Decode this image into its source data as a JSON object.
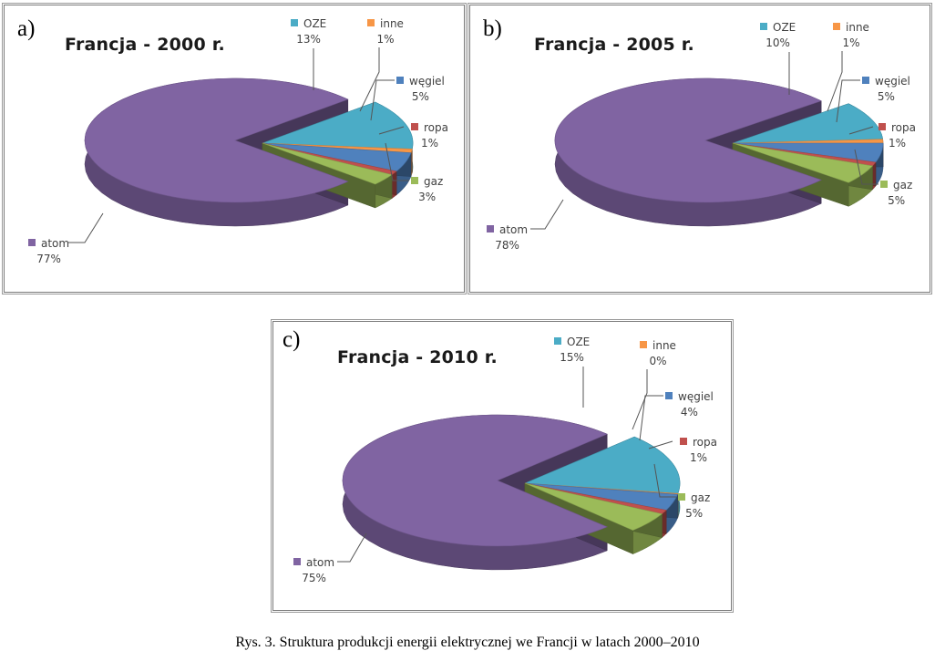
{
  "chart_data": [
    {
      "type": "pie",
      "panel_label": "a)",
      "title": "Francja - 2000 r.",
      "slices": [
        {
          "name": "atom",
          "value": 77,
          "label": "77%"
        },
        {
          "name": "OZE",
          "value": 13,
          "label": "13%"
        },
        {
          "name": "inne",
          "value": 1,
          "label": "1%"
        },
        {
          "name": "węgiel",
          "value": 5,
          "label": "5%"
        },
        {
          "name": "ropa",
          "value": 1,
          "label": "1%"
        },
        {
          "name": "gaz",
          "value": 3,
          "label": "3%"
        }
      ]
    },
    {
      "type": "pie",
      "panel_label": "b)",
      "title": "Francja - 2005 r.",
      "slices": [
        {
          "name": "atom",
          "value": 78,
          "label": "78%"
        },
        {
          "name": "OZE",
          "value": 10,
          "label": "10%"
        },
        {
          "name": "inne",
          "value": 1,
          "label": "1%"
        },
        {
          "name": "węgiel",
          "value": 5,
          "label": "5%"
        },
        {
          "name": "ropa",
          "value": 1,
          "label": "1%"
        },
        {
          "name": "gaz",
          "value": 5,
          "label": "5%"
        }
      ]
    },
    {
      "type": "pie",
      "panel_label": "c)",
      "title": "Francja - 2010 r.",
      "slices": [
        {
          "name": "atom",
          "value": 75,
          "label": "75%"
        },
        {
          "name": "OZE",
          "value": 15,
          "label": "15%"
        },
        {
          "name": "inne",
          "value": 0,
          "label": "0%"
        },
        {
          "name": "węgiel",
          "value": 4,
          "label": "4%"
        },
        {
          "name": "ropa",
          "value": 1,
          "label": "1%"
        },
        {
          "name": "gaz",
          "value": 5,
          "label": "5%"
        }
      ]
    }
  ],
  "colors": {
    "atom": "#8064a2",
    "OZE": "#4bacc6",
    "inne": "#f79646",
    "węgiel": "#4f81bd",
    "ropa": "#c0504d",
    "gaz": "#9bbb59"
  },
  "caption": "Rys. 3. Struktura produkcji energii elektrycznej we Francji w latach 2000–2010"
}
